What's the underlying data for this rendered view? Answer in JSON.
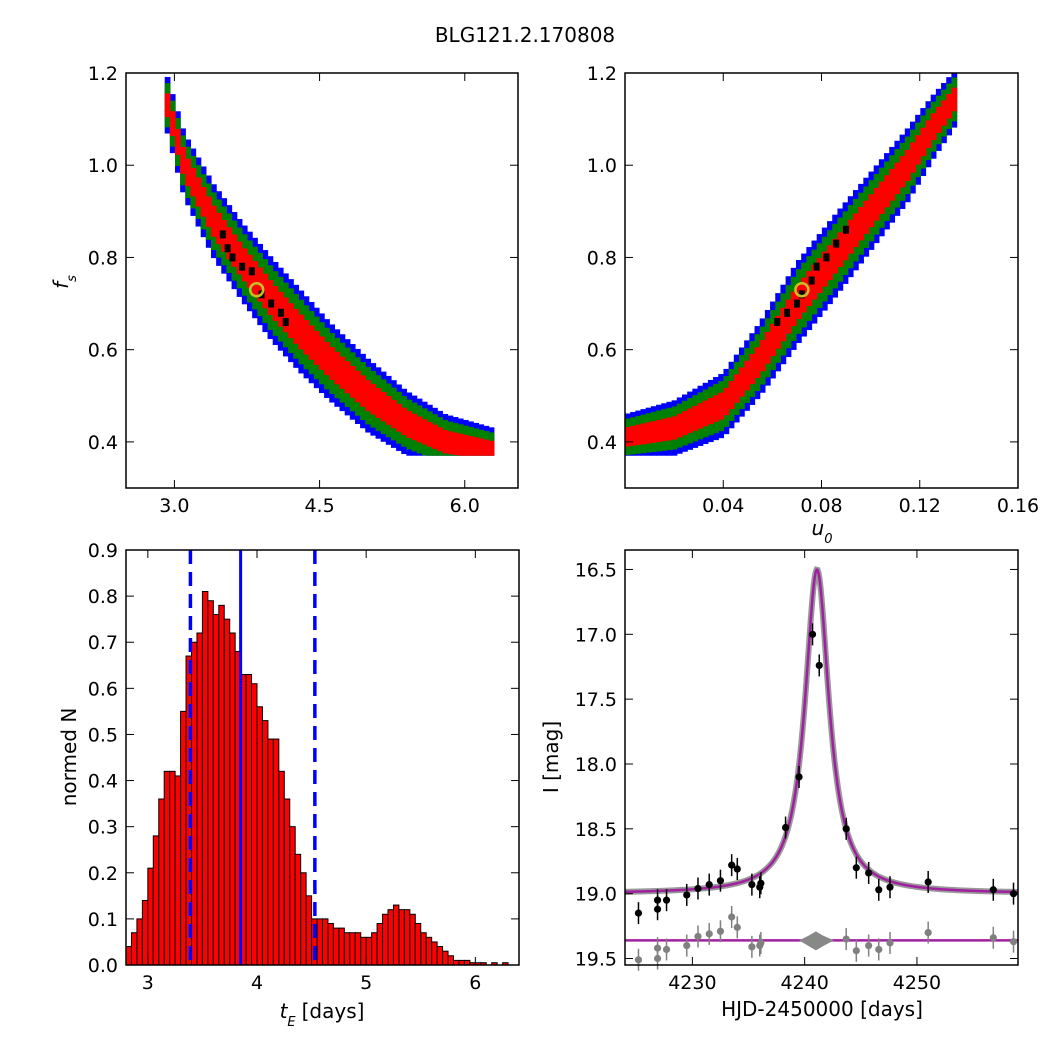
{
  "title": "BLG121.2.170808",
  "chart_data": [
    {
      "id": "fs_vs_tE",
      "type": "heatmap",
      "xlabel": "",
      "ylabel": "f_s",
      "xlim": [
        2.5,
        6.55
      ],
      "ylim": [
        0.3,
        1.2
      ],
      "xticks": [
        "3.0",
        "4.5",
        "6.0"
      ],
      "yticks": [
        "0.4",
        "0.6",
        "0.8",
        "1.0",
        "1.2"
      ],
      "region_colors": {
        "outer": "#0000ff",
        "middle": "#008000",
        "inner": "#ff0000",
        "core": "#000000"
      },
      "ridge": [
        [
          2.9,
          1.15,
          0.06
        ],
        [
          3.1,
          1.0,
          0.07
        ],
        [
          3.4,
          0.88,
          0.08
        ],
        [
          3.7,
          0.79,
          0.085
        ],
        [
          4.0,
          0.71,
          0.09
        ],
        [
          4.3,
          0.64,
          0.09
        ],
        [
          4.6,
          0.575,
          0.085
        ],
        [
          5.0,
          0.5,
          0.08
        ],
        [
          5.4,
          0.44,
          0.07
        ],
        [
          5.8,
          0.4,
          0.06
        ],
        [
          6.3,
          0.38,
          0.05
        ]
      ],
      "core_points": [
        [
          3.5,
          0.85
        ],
        [
          3.55,
          0.82
        ],
        [
          3.6,
          0.8
        ],
        [
          3.7,
          0.78
        ],
        [
          3.8,
          0.77
        ],
        [
          3.9,
          0.72
        ],
        [
          4.0,
          0.7
        ],
        [
          4.1,
          0.68
        ],
        [
          4.15,
          0.66
        ]
      ],
      "best_fit": {
        "x": 3.85,
        "y": 0.73
      }
    },
    {
      "id": "fs_vs_u0",
      "type": "heatmap",
      "xlabel": "u_0",
      "ylabel": "",
      "xlim": [
        0.0,
        0.16
      ],
      "ylim": [
        0.3,
        1.2
      ],
      "xticks": [
        "0.04",
        "0.08",
        "0.12",
        "0.16"
      ],
      "yticks": [
        "0.4",
        "0.6",
        "0.8",
        "1.0",
        "1.2"
      ],
      "region_colors": {
        "outer": "#0000ff",
        "middle": "#008000",
        "inner": "#ff0000",
        "core": "#000000"
      },
      "ridge": [
        [
          0.0,
          0.41,
          0.05
        ],
        [
          0.02,
          0.43,
          0.06
        ],
        [
          0.04,
          0.48,
          0.07
        ],
        [
          0.055,
          0.58,
          0.08
        ],
        [
          0.07,
          0.7,
          0.09
        ],
        [
          0.085,
          0.8,
          0.09
        ],
        [
          0.1,
          0.9,
          0.085
        ],
        [
          0.115,
          1.0,
          0.08
        ],
        [
          0.125,
          1.08,
          0.07
        ],
        [
          0.135,
          1.15,
          0.06
        ]
      ],
      "core_points": [
        [
          0.062,
          0.66
        ],
        [
          0.066,
          0.68
        ],
        [
          0.07,
          0.7
        ],
        [
          0.072,
          0.72
        ],
        [
          0.076,
          0.75
        ],
        [
          0.078,
          0.78
        ],
        [
          0.082,
          0.8
        ],
        [
          0.086,
          0.83
        ],
        [
          0.09,
          0.86
        ]
      ],
      "best_fit": {
        "x": 0.072,
        "y": 0.73
      }
    },
    {
      "id": "tE_histogram",
      "type": "bar",
      "xlabel": "t_E",
      "xlabel_suffix": "[days]",
      "ylabel": "normed N",
      "xlim": [
        2.8,
        6.4
      ],
      "ylim": [
        0,
        0.9
      ],
      "xticks": [
        "3",
        "4",
        "5",
        "6"
      ],
      "yticks": [
        "0.0",
        "0.1",
        "0.2",
        "0.3",
        "0.4",
        "0.5",
        "0.6",
        "0.7",
        "0.8",
        "0.9"
      ],
      "bar_color": "#ff0000",
      "bin_start": 2.8,
      "bin_width": 0.05,
      "values": [
        0.04,
        0.07,
        0.1,
        0.14,
        0.21,
        0.28,
        0.36,
        0.42,
        0.42,
        0.41,
        0.55,
        0.67,
        0.7,
        0.72,
        0.81,
        0.79,
        0.76,
        0.78,
        0.75,
        0.72,
        0.68,
        0.63,
        0.63,
        0.61,
        0.56,
        0.53,
        0.49,
        0.49,
        0.42,
        0.36,
        0.3,
        0.24,
        0.2,
        0.15,
        0.1,
        0.1,
        0.1,
        0.09,
        0.08,
        0.08,
        0.07,
        0.07,
        0.07,
        0.06,
        0.06,
        0.07,
        0.09,
        0.11,
        0.12,
        0.13,
        0.12,
        0.12,
        0.11,
        0.09,
        0.07,
        0.06,
        0.05,
        0.04,
        0.03,
        0.02,
        0.01,
        0.01,
        0.01,
        0.005,
        0.005,
        0.005,
        0.0,
        0.005,
        0.0,
        0.005,
        0.0,
        0.0
      ],
      "median": 3.85,
      "interval": [
        3.39,
        4.53
      ]
    },
    {
      "id": "light_curve",
      "type": "scatter",
      "xlabel": "HJD-2450000 [days]",
      "ylabel": "I [mag]",
      "xlim": [
        4224,
        4259
      ],
      "ylim": [
        19.55,
        16.35
      ],
      "xticks": [
        "4230",
        "4240",
        "4250"
      ],
      "yticks": [
        "16.5",
        "17.0",
        "17.5",
        "18.0",
        "18.5",
        "19.0",
        "19.5"
      ],
      "model": {
        "t0": 4241.1,
        "tau": 1.3,
        "base": 19.0,
        "peak": 16.5,
        "color": "#a020a0"
      },
      "residual_baseline": 19.36,
      "series": [
        {
          "color": "#000000",
          "x": [
            4225.2,
            4226.9,
            4226.9,
            4227.7,
            4229.5,
            4230.5,
            4231.5,
            4232.5,
            4233.5,
            4234.0,
            4235.3,
            4236.0,
            4236.1,
            4238.3,
            4239.5,
            4240.7,
            4241.3,
            4243.7,
            4244.6,
            4245.7,
            4246.6,
            4247.6,
            4251.0,
            4256.8,
            4258.6
          ],
          "y": [
            19.15,
            19.12,
            19.05,
            19.05,
            19.01,
            18.96,
            18.93,
            18.9,
            18.78,
            18.81,
            18.93,
            18.95,
            18.92,
            18.49,
            18.1,
            17.0,
            17.24,
            18.5,
            18.8,
            18.84,
            18.97,
            18.95,
            18.91,
            18.97,
            19.0
          ]
        },
        {
          "color": "#808080",
          "x": [
            4225.2,
            4226.9,
            4226.9,
            4227.7,
            4229.5,
            4230.5,
            4231.5,
            4232.5,
            4233.5,
            4234.0,
            4235.3,
            4236.0,
            4236.1,
            4243.7,
            4244.6,
            4245.7,
            4246.6,
            4247.6,
            4251.0,
            4256.8,
            4258.6
          ],
          "y": [
            19.51,
            19.5,
            19.42,
            19.43,
            19.4,
            19.33,
            19.31,
            19.29,
            19.18,
            19.26,
            19.41,
            19.4,
            19.38,
            19.35,
            19.44,
            19.4,
            19.43,
            19.38,
            19.3,
            19.34,
            19.37
          ]
        }
      ]
    }
  ]
}
